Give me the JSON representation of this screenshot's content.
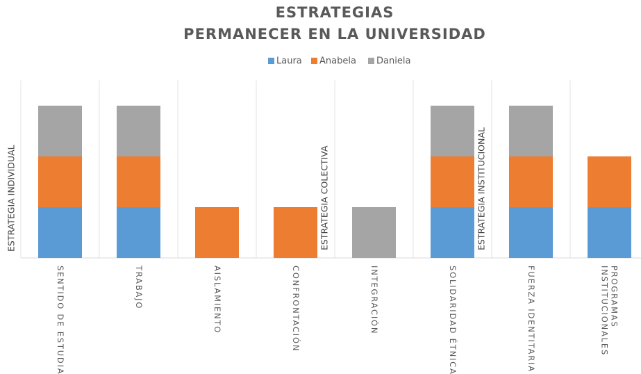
{
  "chart_data": {
    "type": "stacked_bar",
    "title": "ESTRATEGIAS",
    "subtitle": "PERMANECER EN LA UNIVERSIDAD",
    "categories": [
      "SENTIDO DE ESTUDIAR",
      "TRABAJO",
      "AISLAMIENTO",
      "CONFRONTACIÓN",
      "INTEGRACIÓN",
      "SOLIDARIDAD ÉTNICA",
      "FUERZA IDENTITARIA",
      "PROGRAMAS INSTITUCIONALES"
    ],
    "series": [
      {
        "name": "Laura",
        "color": "#5b9bd5",
        "values": [
          1,
          1,
          0,
          0,
          0,
          1,
          1,
          1
        ]
      },
      {
        "name": "Anabela",
        "color": "#ed7d31",
        "values": [
          1,
          1,
          1,
          1,
          0,
          1,
          1,
          1
        ]
      },
      {
        "name": "Daniela",
        "color": "#a5a5a5",
        "values": [
          1,
          1,
          0,
          0,
          1,
          1,
          1,
          0
        ]
      }
    ],
    "annotations": [
      "ESTRATEGIA INDIVIDUAL",
      "ESTRATEGIA COLECTIVA",
      "ESTRATEGIA INSTITUCIONAL"
    ],
    "ylim": [
      0,
      3.5
    ],
    "grid": true,
    "legend": "top"
  }
}
